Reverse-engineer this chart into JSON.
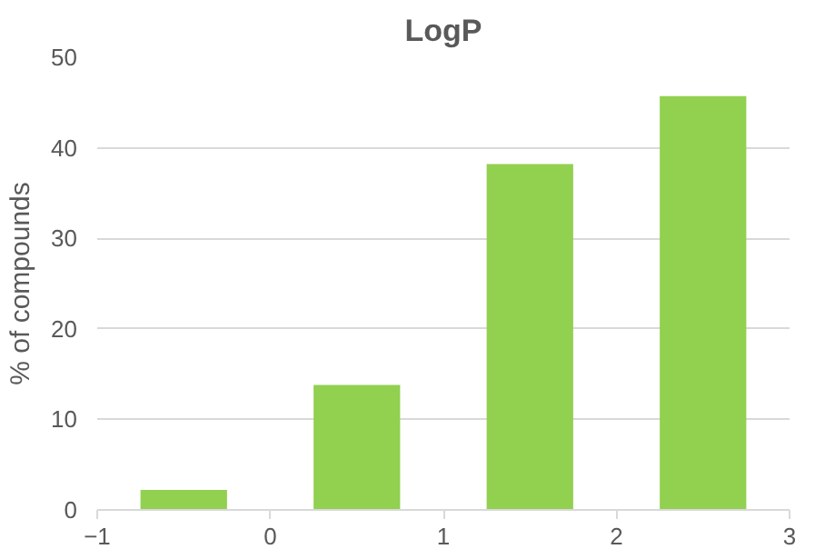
{
  "chart_data": {
    "type": "histogram",
    "title": "LogP",
    "ylabel": "% of compounds",
    "bins": [
      -1,
      0,
      1,
      2,
      3
    ],
    "values": [
      2.2,
      13.8,
      38.2,
      45.7
    ],
    "color": "#92d050",
    "xlim": [
      -1,
      3
    ],
    "xticks": [
      -1,
      0,
      1,
      2,
      3
    ],
    "ylim": [
      0,
      50
    ],
    "yticks": [
      0,
      10,
      20,
      30,
      40,
      50
    ],
    "grid": "y"
  }
}
